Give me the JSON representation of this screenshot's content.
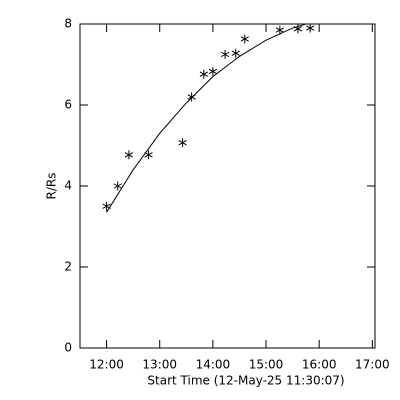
{
  "chart_data": {
    "type": "scatter",
    "xlabel": "Start Time (12-May-25 11:30:07)",
    "ylabel": "R/Rs",
    "xlim": [
      11.5,
      17.05
    ],
    "xticks": [
      {
        "value": 12,
        "label": "12:00"
      },
      {
        "value": 13,
        "label": "13:00"
      },
      {
        "value": 14,
        "label": "14:00"
      },
      {
        "value": 15,
        "label": "15:00"
      },
      {
        "value": 16,
        "label": "16:00"
      },
      {
        "value": 17,
        "label": "17:00"
      }
    ],
    "ylim": [
      0,
      8
    ],
    "yticks": [
      0,
      2,
      4,
      6,
      8
    ],
    "series": [
      {
        "style": "asterisk",
        "color": "#000000",
        "x": [
          12.0,
          12.21,
          12.42,
          12.79,
          13.43,
          13.6,
          13.83,
          14.0,
          14.23,
          14.43,
          14.6,
          15.26,
          15.6,
          15.83
        ],
        "values": [
          3.5,
          4.0,
          4.77,
          4.77,
          5.07,
          6.2,
          6.76,
          6.83,
          7.25,
          7.28,
          7.63,
          7.85,
          7.88,
          7.9
        ]
      },
      {
        "style": "line",
        "color": "#000000",
        "x": [
          12.0,
          12.5,
          13.0,
          13.5,
          14.0,
          14.5,
          15.0,
          15.5,
          15.75
        ],
        "values": [
          3.35,
          4.4,
          5.3,
          6.05,
          6.7,
          7.2,
          7.6,
          7.9,
          8.0
        ]
      }
    ]
  }
}
